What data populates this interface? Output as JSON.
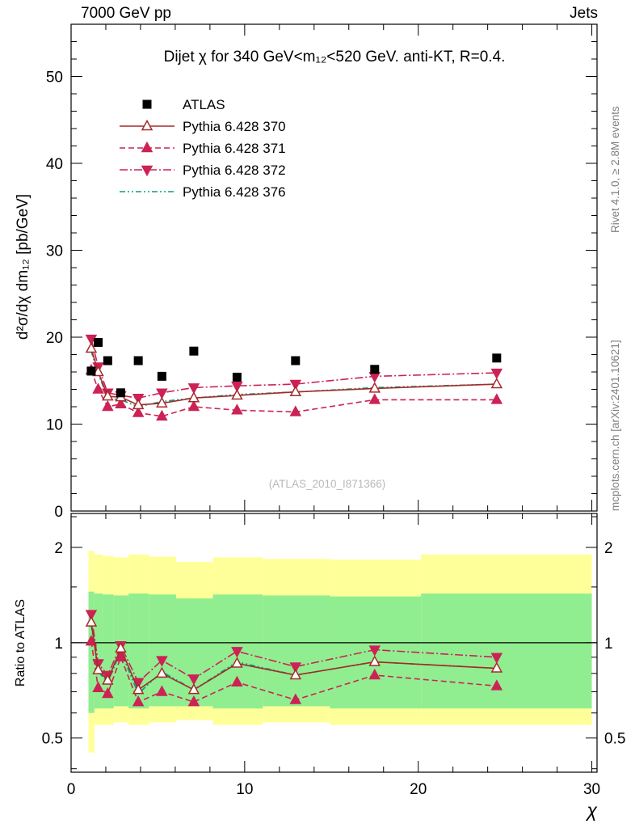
{
  "header": {
    "left": "7000 GeV pp",
    "right": "Jets"
  },
  "side_labels": {
    "rivet": "Rivet 4.1.0, ≥ 2.8M events",
    "mcplots": "mcplots.cern.ch [arXiv:2401.10621]"
  },
  "watermark": "(ATLAS_2010_I871366)",
  "colors": {
    "atlas": "#000000",
    "p370": "#a52a2a",
    "p371": "#cc2255",
    "p372": "#cc2255",
    "p376": "#00a086",
    "band_outer": "#ffff99",
    "band_inner": "#90ee90"
  },
  "chart_data": [
    {
      "type": "line",
      "title": "Dijet χ for 340 GeV<m₁₂<520 GeV.  anti-KT, R=0.4.",
      "ylabel": "d²σ/dχ dm₁₂ [pb/GeV]",
      "xlabel": "",
      "xlim": [
        0,
        30.3
      ],
      "ylim": [
        0,
        56
      ],
      "yticks": [
        0,
        10,
        20,
        30,
        40,
        50
      ],
      "xticks": [
        0,
        10,
        20,
        30
      ],
      "x": [
        1.16,
        1.56,
        2.11,
        2.86,
        3.87,
        5.23,
        7.07,
        9.56,
        12.93,
        17.49,
        24.52
      ],
      "series": [
        {
          "name": "ATLAS",
          "color": "#000000",
          "line": "none",
          "marker": "square",
          "marker_fill": "filled",
          "values": [
            16.1,
            19.4,
            17.3,
            13.6,
            17.3,
            15.5,
            18.4,
            15.4,
            17.3,
            16.3,
            17.6
          ]
        },
        {
          "name": "Pythia 6.428 370",
          "color": "#a52a2a",
          "line": "solid",
          "marker": "triangle-up",
          "marker_fill": "open",
          "values": [
            18.7,
            16.0,
            13.2,
            13.1,
            12.2,
            12.4,
            13.0,
            13.3,
            13.7,
            14.1,
            14.6
          ]
        },
        {
          "name": "Pythia 6.428 371",
          "color": "#cc2255",
          "line": "dashed",
          "marker": "triangle-up",
          "marker_fill": "filled",
          "values": [
            16.2,
            14.0,
            12.0,
            12.3,
            11.3,
            10.9,
            12.0,
            11.6,
            11.4,
            12.8,
            12.8
          ]
        },
        {
          "name": "Pythia 6.428 372",
          "color": "#cc2255",
          "line": "dashdot",
          "marker": "triangle-down",
          "marker_fill": "filled",
          "values": [
            19.8,
            16.6,
            13.6,
            13.3,
            13.0,
            13.6,
            14.2,
            14.4,
            14.6,
            15.5,
            15.9
          ]
        },
        {
          "name": "Pythia 6.428 376",
          "color": "#00a086",
          "line": "dashdotdot",
          "marker": "none",
          "marker_fill": "filled",
          "values": [
            18.4,
            15.8,
            13.0,
            12.8,
            12.0,
            12.6,
            13.0,
            13.4,
            13.7,
            14.2,
            14.6
          ]
        }
      ]
    },
    {
      "type": "line",
      "ylabel": "Ratio to ATLAS",
      "xlabel": "χ",
      "yscale": "log",
      "xlim": [
        0,
        30.3
      ],
      "ylim": [
        0.39,
        2.56
      ],
      "yticks": [
        0.5,
        1,
        2
      ],
      "xticks": [
        0,
        10,
        20,
        30
      ],
      "refline": 1,
      "x": [
        1.16,
        1.56,
        2.11,
        2.86,
        3.87,
        5.23,
        7.07,
        9.56,
        12.93,
        17.49,
        24.52
      ],
      "bands": {
        "edges": [
          1.0,
          1.34,
          1.81,
          2.45,
          3.31,
          4.48,
          6.05,
          8.17,
          11.04,
          14.92,
          20.16,
          30.0
        ],
        "outer_lo": [
          0.45,
          0.55,
          0.55,
          0.56,
          0.55,
          0.56,
          0.57,
          0.55,
          0.56,
          0.55,
          0.55
        ],
        "outer_hi": [
          1.95,
          1.9,
          1.88,
          1.86,
          1.9,
          1.87,
          1.8,
          1.86,
          1.84,
          1.83,
          1.9
        ],
        "inner_lo": [
          0.6,
          0.62,
          0.62,
          0.63,
          0.62,
          0.63,
          0.63,
          0.62,
          0.63,
          0.62,
          0.62
        ],
        "inner_hi": [
          1.45,
          1.43,
          1.42,
          1.41,
          1.43,
          1.42,
          1.38,
          1.42,
          1.41,
          1.4,
          1.43
        ]
      },
      "series": [
        {
          "name": "Pythia 6.428 370",
          "values": [
            1.16,
            0.82,
            0.76,
            0.96,
            0.71,
            0.8,
            0.71,
            0.86,
            0.79,
            0.87,
            0.83
          ]
        },
        {
          "name": "Pythia 6.428 371",
          "values": [
            1.01,
            0.72,
            0.69,
            0.9,
            0.65,
            0.7,
            0.65,
            0.75,
            0.66,
            0.79,
            0.73
          ]
        },
        {
          "name": "Pythia 6.428 372",
          "values": [
            1.23,
            0.86,
            0.79,
            0.98,
            0.75,
            0.88,
            0.77,
            0.94,
            0.84,
            0.95,
            0.9
          ]
        },
        {
          "name": "Pythia 6.428 376",
          "values": [
            1.14,
            0.81,
            0.75,
            0.94,
            0.69,
            0.81,
            0.71,
            0.87,
            0.79,
            0.87,
            0.83
          ]
        }
      ]
    }
  ]
}
